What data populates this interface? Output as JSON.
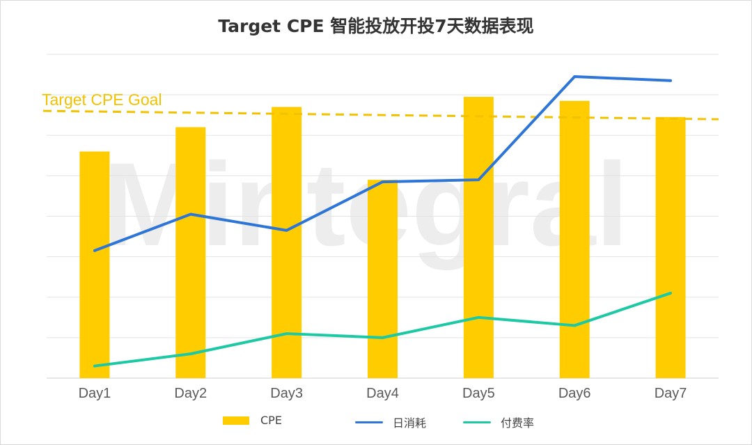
{
  "chart_data": {
    "type": "bar",
    "title": "Target CPE 智能投放开投7天数据表现",
    "categories": [
      "Day1",
      "Day2",
      "Day3",
      "Day4",
      "Day5",
      "Day6",
      "Day7"
    ],
    "series": [
      {
        "name": "CPE",
        "type": "bar",
        "color": "#ffcc00",
        "values": [
          5.6,
          6.2,
          6.7,
          4.9,
          6.95,
          6.85,
          6.45
        ]
      },
      {
        "name": "日消耗",
        "type": "line",
        "color": "#2e75d8",
        "values": [
          3.15,
          4.05,
          3.65,
          4.85,
          4.9,
          7.45,
          7.35
        ]
      },
      {
        "name": "付费率",
        "type": "line",
        "color": "#1dc9a4",
        "values": [
          0.3,
          0.6,
          1.1,
          1.0,
          1.5,
          1.3,
          2.1
        ]
      }
    ],
    "goal_line": {
      "label": "Target CPE Goal",
      "value": 6.5,
      "color": "#f2c200",
      "style": "dashed"
    },
    "ylim": [
      0,
      8
    ],
    "y_tick_labels_visible": false,
    "grid": true,
    "legend_position": "bottom",
    "watermark": "Mintegral"
  }
}
